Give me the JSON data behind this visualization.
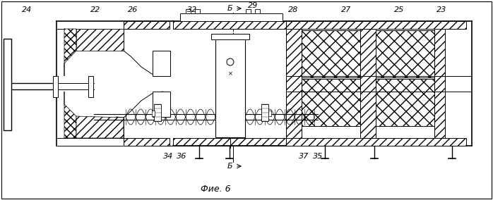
{
  "bg_color": "#ffffff",
  "line_color": "#000000",
  "title": "Фие. 6",
  "figsize": [
    6.98,
    2.84
  ],
  "dpi": 100,
  "labels": [
    [
      38,
      14,
      "24"
    ],
    [
      135,
      14,
      "22"
    ],
    [
      188,
      14,
      "26"
    ],
    [
      272,
      14,
      "32"
    ],
    [
      358,
      8,
      "29"
    ],
    [
      415,
      14,
      "28"
    ],
    [
      490,
      14,
      "27"
    ],
    [
      565,
      14,
      "25"
    ],
    [
      625,
      14,
      "23"
    ],
    [
      238,
      222,
      "34"
    ],
    [
      257,
      222,
      "36"
    ],
    [
      430,
      222,
      "37"
    ],
    [
      450,
      222,
      "35"
    ]
  ],
  "caption": [
    305,
    268,
    "Фие. 6"
  ]
}
